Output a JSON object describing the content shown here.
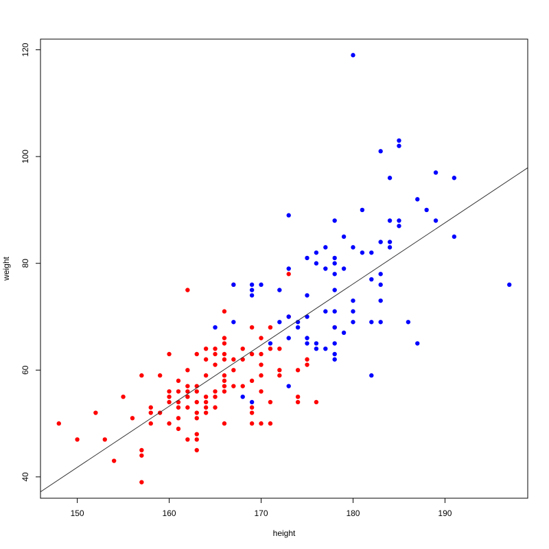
{
  "chart_data": {
    "type": "scatter",
    "title": "",
    "xlabel": "height",
    "ylabel": "weight",
    "xlim": [
      146,
      199
    ],
    "ylim": [
      36,
      122
    ],
    "xticks": [
      150,
      160,
      170,
      180,
      190
    ],
    "yticks": [
      40,
      60,
      80,
      100,
      120
    ],
    "grid": false,
    "legend": "none",
    "colors": {
      "red": "#ff0000",
      "blue": "#0000ff",
      "line": "#333333",
      "axis": "#000000"
    },
    "regression_line": {
      "x": [
        146,
        199
      ],
      "y": [
        37.2,
        97.9
      ]
    },
    "series": [
      {
        "color": "red",
        "points": [
          [
            148,
            50
          ],
          [
            150,
            47
          ],
          [
            152,
            52
          ],
          [
            153,
            47
          ],
          [
            154,
            43
          ],
          [
            155,
            55
          ],
          [
            156,
            51
          ],
          [
            157,
            59
          ],
          [
            157,
            45
          ],
          [
            157,
            44
          ],
          [
            157,
            39
          ],
          [
            158,
            53
          ],
          [
            158,
            52
          ],
          [
            158,
            50
          ],
          [
            159,
            59
          ],
          [
            159,
            52
          ],
          [
            160,
            63
          ],
          [
            160,
            56
          ],
          [
            160,
            55
          ],
          [
            160,
            54
          ],
          [
            160,
            50
          ],
          [
            161,
            58
          ],
          [
            161,
            56
          ],
          [
            161,
            54
          ],
          [
            161,
            53
          ],
          [
            161,
            51
          ],
          [
            161,
            49
          ],
          [
            162,
            75
          ],
          [
            162,
            60
          ],
          [
            162,
            57
          ],
          [
            162,
            56
          ],
          [
            162,
            55
          ],
          [
            162,
            53
          ],
          [
            162,
            47
          ],
          [
            163,
            63
          ],
          [
            163,
            57
          ],
          [
            163,
            56
          ],
          [
            163,
            54
          ],
          [
            163,
            52
          ],
          [
            163,
            51
          ],
          [
            163,
            48
          ],
          [
            163,
            47
          ],
          [
            163,
            45
          ],
          [
            164,
            64
          ],
          [
            164,
            62
          ],
          [
            164,
            59
          ],
          [
            164,
            55
          ],
          [
            164,
            54
          ],
          [
            164,
            53
          ],
          [
            164,
            52
          ],
          [
            165,
            64
          ],
          [
            165,
            63
          ],
          [
            165,
            61
          ],
          [
            165,
            56
          ],
          [
            165,
            55
          ],
          [
            165,
            53
          ],
          [
            166,
            71
          ],
          [
            166,
            66
          ],
          [
            166,
            65
          ],
          [
            166,
            63
          ],
          [
            166,
            62
          ],
          [
            166,
            59
          ],
          [
            166,
            58
          ],
          [
            166,
            57
          ],
          [
            166,
            56
          ],
          [
            166,
            50
          ],
          [
            167,
            76
          ],
          [
            167,
            62
          ],
          [
            167,
            60
          ],
          [
            167,
            57
          ],
          [
            168,
            64
          ],
          [
            168,
            62
          ],
          [
            168,
            57
          ],
          [
            169,
            68
          ],
          [
            169,
            63
          ],
          [
            169,
            58
          ],
          [
            169,
            53
          ],
          [
            169,
            52
          ],
          [
            169,
            50
          ],
          [
            170,
            66
          ],
          [
            170,
            63
          ],
          [
            170,
            61
          ],
          [
            170,
            59
          ],
          [
            170,
            56
          ],
          [
            170,
            50
          ],
          [
            171,
            68
          ],
          [
            171,
            64
          ],
          [
            171,
            54
          ],
          [
            171,
            50
          ],
          [
            172,
            64
          ],
          [
            172,
            60
          ],
          [
            172,
            59
          ],
          [
            173,
            78
          ],
          [
            173,
            70
          ],
          [
            174,
            60
          ],
          [
            174,
            55
          ],
          [
            174,
            54
          ],
          [
            175,
            62
          ],
          [
            175,
            61
          ],
          [
            176,
            54
          ],
          [
            178,
            68
          ]
        ]
      },
      {
        "color": "blue",
        "points": [
          [
            165,
            68
          ],
          [
            167,
            76
          ],
          [
            167,
            69
          ],
          [
            168,
            55
          ],
          [
            169,
            76
          ],
          [
            169,
            75
          ],
          [
            169,
            74
          ],
          [
            169,
            54
          ],
          [
            170,
            76
          ],
          [
            171,
            65
          ],
          [
            172,
            75
          ],
          [
            172,
            69
          ],
          [
            173,
            89
          ],
          [
            173,
            79
          ],
          [
            173,
            70
          ],
          [
            173,
            66
          ],
          [
            173,
            57
          ],
          [
            174,
            69
          ],
          [
            174,
            68
          ],
          [
            175,
            81
          ],
          [
            175,
            74
          ],
          [
            175,
            70
          ],
          [
            175,
            66
          ],
          [
            175,
            65
          ],
          [
            176,
            82
          ],
          [
            176,
            80
          ],
          [
            176,
            65
          ],
          [
            176,
            64
          ],
          [
            177,
            83
          ],
          [
            177,
            79
          ],
          [
            177,
            71
          ],
          [
            177,
            64
          ],
          [
            178,
            88
          ],
          [
            178,
            81
          ],
          [
            178,
            80
          ],
          [
            178,
            78
          ],
          [
            178,
            75
          ],
          [
            178,
            71
          ],
          [
            178,
            68
          ],
          [
            178,
            65
          ],
          [
            178,
            63
          ],
          [
            178,
            62
          ],
          [
            179,
            85
          ],
          [
            179,
            79
          ],
          [
            179,
            67
          ],
          [
            180,
            119
          ],
          [
            180,
            83
          ],
          [
            180,
            73
          ],
          [
            180,
            71
          ],
          [
            180,
            69
          ],
          [
            181,
            90
          ],
          [
            181,
            82
          ],
          [
            182,
            82
          ],
          [
            182,
            77
          ],
          [
            182,
            69
          ],
          [
            182,
            59
          ],
          [
            183,
            101
          ],
          [
            183,
            84
          ],
          [
            183,
            78
          ],
          [
            183,
            76
          ],
          [
            183,
            73
          ],
          [
            183,
            69
          ],
          [
            184,
            96
          ],
          [
            184,
            88
          ],
          [
            184,
            84
          ],
          [
            184,
            83
          ],
          [
            185,
            103
          ],
          [
            185,
            102
          ],
          [
            185,
            88
          ],
          [
            185,
            87
          ],
          [
            186,
            69
          ],
          [
            187,
            92
          ],
          [
            187,
            65
          ],
          [
            188,
            90
          ],
          [
            189,
            97
          ],
          [
            189,
            88
          ],
          [
            191,
            96
          ],
          [
            191,
            85
          ],
          [
            197,
            76
          ]
        ]
      }
    ]
  }
}
